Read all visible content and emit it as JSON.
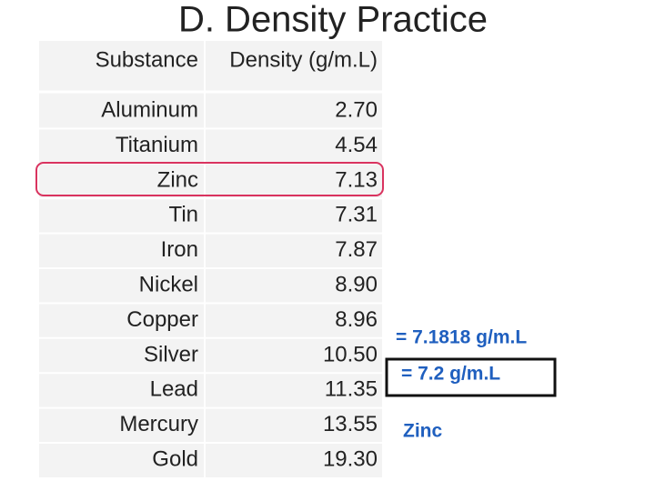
{
  "title": "D. Density Practice",
  "table": {
    "header": [
      "Substance",
      "Density (g/m.L)"
    ],
    "rows": [
      [
        "Aluminum",
        "2.70"
      ],
      [
        "Titanium",
        "4.54"
      ],
      [
        "Zinc",
        "7.13"
      ],
      [
        "Tin",
        "7.31"
      ],
      [
        "Iron",
        "7.87"
      ],
      [
        "Nickel",
        "8.90"
      ],
      [
        "Copper",
        "8.96"
      ],
      [
        "Silver",
        "10.50"
      ],
      [
        "Lead",
        "11.35"
      ],
      [
        "Mercury",
        "13.55"
      ],
      [
        "Gold",
        "19.30"
      ]
    ]
  },
  "annotations": {
    "calculated": "= 7.1818 g/m.L",
    "rounded": "= 7.2 g/m.L",
    "answer": "Zinc"
  }
}
